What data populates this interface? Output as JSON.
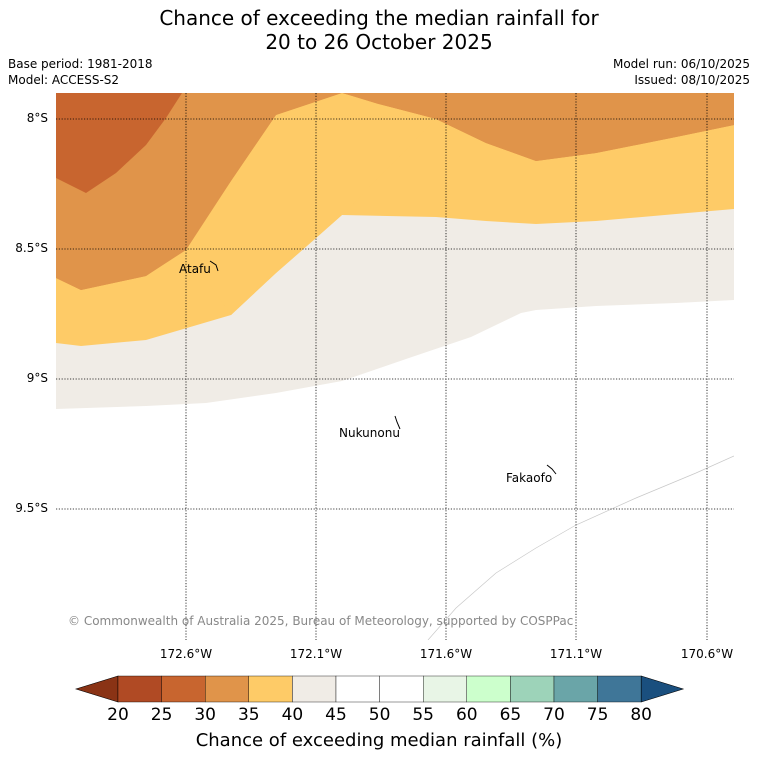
{
  "title": {
    "line1": "Chance of exceeding the median rainfall for",
    "line2": "20 to 26 October 2025"
  },
  "meta": {
    "base_period": "Base period: 1981-2018",
    "model": "Model: ACCESS-S2",
    "model_run": "Model run: 06/10/2025",
    "issued": "Issued: 08/10/2025"
  },
  "axes": {
    "y_ticks": [
      "8°S",
      "8.5°S",
      "9°S",
      "9.5°S"
    ],
    "x_ticks": [
      "172.6°W",
      "172.1°W",
      "171.6°W",
      "171.1°W",
      "170.6°W"
    ]
  },
  "places": [
    {
      "name": "Atafu"
    },
    {
      "name": "Nukunonu"
    },
    {
      "name": "Fakaofo"
    }
  ],
  "copyright": "© Commonwealth of Australia 2025, Bureau of Meteorology, supported by COSPPac",
  "colorbar": {
    "title": "Chance of exceeding median rainfall (%)",
    "ticks": [
      "20",
      "25",
      "30",
      "35",
      "40",
      "45",
      "50",
      "55",
      "60",
      "65",
      "70",
      "75",
      "80"
    ],
    "colors": [
      "#b04a24",
      "#c8652f",
      "#e0944a",
      "#fecb67",
      "#f0ece6",
      "#ffffff",
      "#ffffff",
      "#e8f5e6",
      "#ccffcc",
      "#9dd3b9",
      "#6aa5a8",
      "#3f7698"
    ],
    "under_color": "#8a3315",
    "over_color": "#1a4f7e"
  }
}
